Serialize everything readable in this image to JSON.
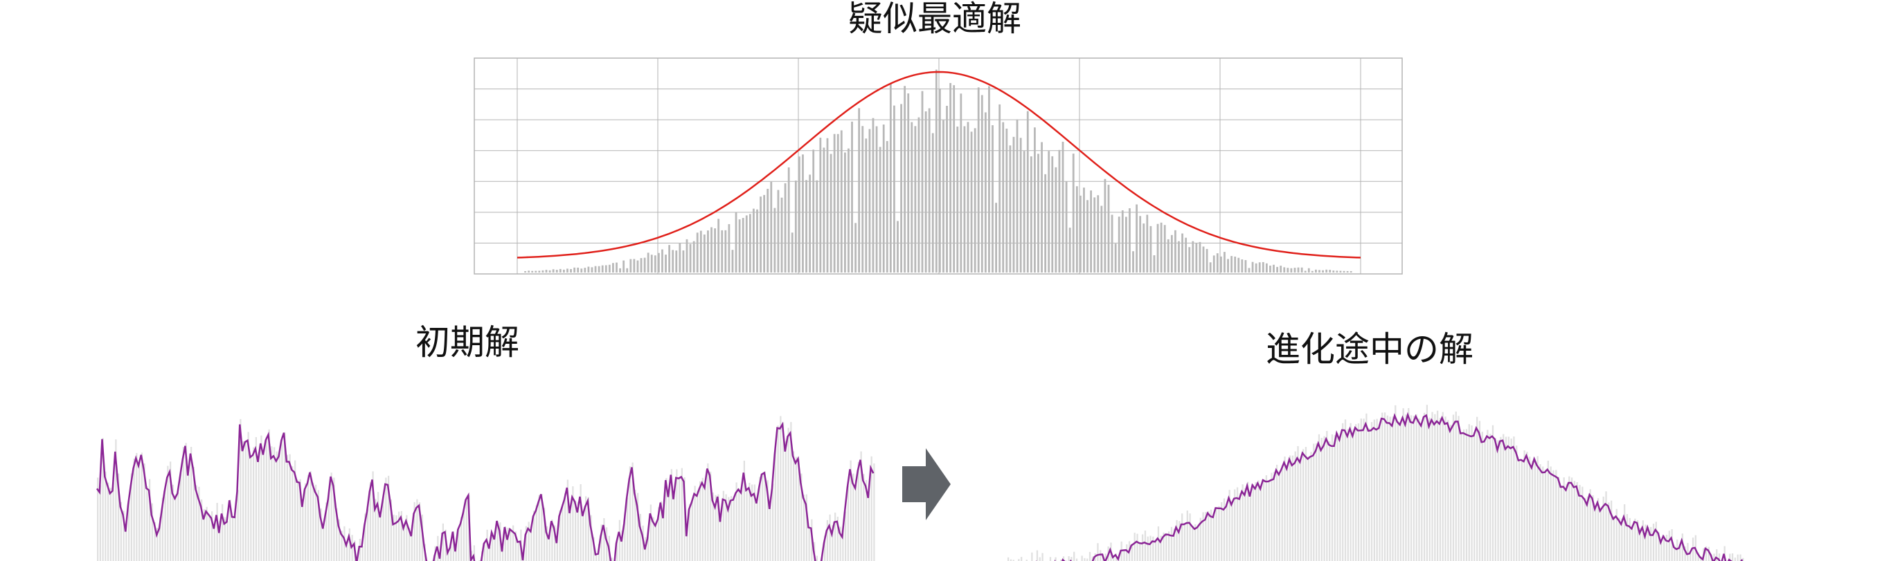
{
  "titles": {
    "top": "疑似最適解",
    "left": "初期解",
    "right": "進化途中の解"
  },
  "colors": {
    "bar": "#c8c8c8",
    "bar_light": "#e0e0e0",
    "grid": "#b3b3b3",
    "fit_curve": "#e0201a",
    "trace": "#8b2596",
    "arrow": "#5f6368"
  },
  "chart_data": [
    {
      "type": "bar",
      "name": "pseudo-optimal",
      "bin_count": 240,
      "grid": true,
      "grid_x_lines": 6,
      "grid_y_lines": 6,
      "fit": "normal",
      "fit_peak_fraction": 0.5,
      "fit_width_fraction": 0.16,
      "baseline_fraction": 0.02,
      "noise": 0.35
    },
    {
      "type": "bar",
      "name": "initial",
      "bin_count": 300,
      "grid": false,
      "overlay": "line",
      "distribution": "random"
    },
    {
      "type": "bar",
      "name": "evolving",
      "bin_count": 280,
      "grid": false,
      "overlay": "line",
      "distribution": "single-peak",
      "peak_fraction": 0.55
    }
  ],
  "arrow": {
    "direction": "right",
    "icon": "arrow-right-icon"
  }
}
